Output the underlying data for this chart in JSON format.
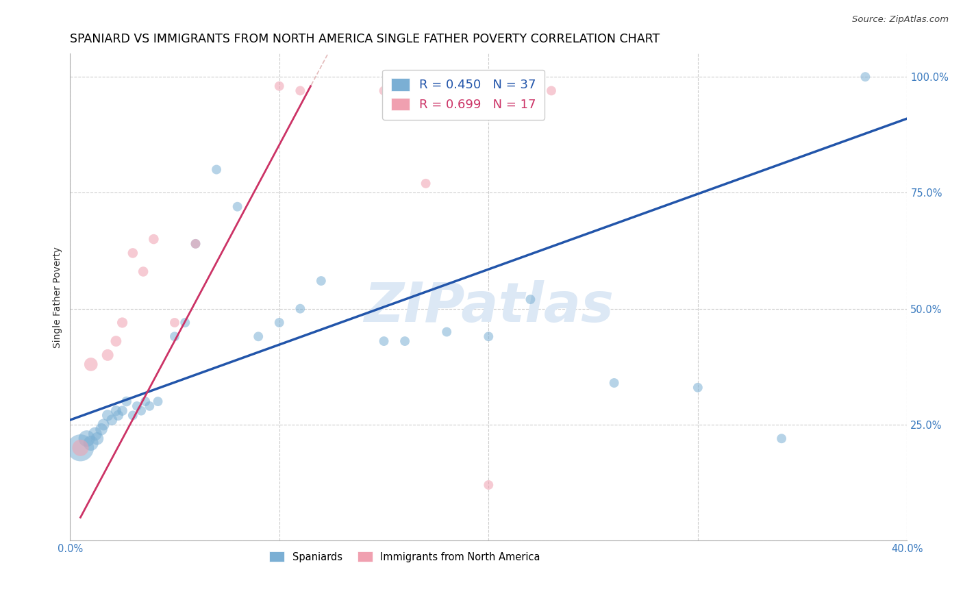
{
  "title": "SPANIARD VS IMMIGRANTS FROM NORTH AMERICA SINGLE FATHER POVERTY CORRELATION CHART",
  "source": "Source: ZipAtlas.com",
  "ylabel": "Single Father Poverty",
  "x_min": 0.0,
  "x_max": 0.4,
  "y_min": 0.0,
  "y_max": 1.05,
  "y_ticks": [
    0.0,
    0.25,
    0.5,
    0.75,
    1.0
  ],
  "y_tick_labels": [
    "",
    "25.0%",
    "50.0%",
    "75.0%",
    "100.0%"
  ],
  "blue_R": "R = 0.450",
  "blue_N": "N = 37",
  "pink_R": "R = 0.699",
  "pink_N": "N = 17",
  "blue_scatter_x": [
    0.005,
    0.008,
    0.01,
    0.012,
    0.013,
    0.015,
    0.016,
    0.018,
    0.02,
    0.022,
    0.023,
    0.025,
    0.027,
    0.03,
    0.032,
    0.034,
    0.036,
    0.038,
    0.042,
    0.05,
    0.055,
    0.06,
    0.07,
    0.08,
    0.09,
    0.1,
    0.11,
    0.12,
    0.15,
    0.16,
    0.18,
    0.2,
    0.22,
    0.26,
    0.3,
    0.34,
    0.38
  ],
  "blue_scatter_y": [
    0.2,
    0.22,
    0.21,
    0.23,
    0.22,
    0.24,
    0.25,
    0.27,
    0.26,
    0.28,
    0.27,
    0.28,
    0.3,
    0.27,
    0.29,
    0.28,
    0.3,
    0.29,
    0.3,
    0.44,
    0.47,
    0.64,
    0.8,
    0.72,
    0.44,
    0.47,
    0.5,
    0.56,
    0.43,
    0.43,
    0.45,
    0.44,
    0.52,
    0.34,
    0.33,
    0.22,
    1.0
  ],
  "blue_scatter_sizes": [
    800,
    300,
    250,
    200,
    180,
    160,
    150,
    140,
    130,
    120,
    120,
    110,
    110,
    100,
    100,
    100,
    100,
    100,
    100,
    100,
    100,
    100,
    100,
    100,
    100,
    100,
    100,
    100,
    100,
    100,
    100,
    100,
    100,
    100,
    100,
    100,
    100
  ],
  "pink_scatter_x": [
    0.005,
    0.01,
    0.018,
    0.022,
    0.025,
    0.03,
    0.035,
    0.04,
    0.05,
    0.06,
    0.1,
    0.11,
    0.15,
    0.16,
    0.17,
    0.2,
    0.23
  ],
  "pink_scatter_y": [
    0.2,
    0.38,
    0.4,
    0.43,
    0.47,
    0.62,
    0.58,
    0.65,
    0.47,
    0.64,
    0.98,
    0.97,
    0.97,
    0.97,
    0.77,
    0.12,
    0.97
  ],
  "pink_scatter_sizes": [
    300,
    200,
    150,
    130,
    120,
    110,
    110,
    110,
    100,
    100,
    100,
    100,
    100,
    100,
    100,
    100,
    100
  ],
  "blue_line_x0": 0.0,
  "blue_line_y0": 0.26,
  "blue_line_x1": 0.4,
  "blue_line_y1": 0.91,
  "pink_line_solid_x0": 0.005,
  "pink_line_solid_y0": 0.05,
  "pink_line_solid_x1": 0.115,
  "pink_line_solid_y1": 0.98,
  "pink_line_dash_x0": 0.005,
  "pink_line_dash_y0": 0.05,
  "pink_line_dash_x1": 0.3,
  "blue_color": "#7bafd4",
  "pink_color": "#f0a0b0",
  "blue_line_color": "#2255aa",
  "pink_line_color": "#cc3366",
  "pink_dash_color": "#ddaaaa",
  "watermark_color": "#dce8f5",
  "title_fontsize": 12.5,
  "axis_label_fontsize": 10,
  "tick_fontsize": 10.5,
  "legend_fontsize": 13
}
